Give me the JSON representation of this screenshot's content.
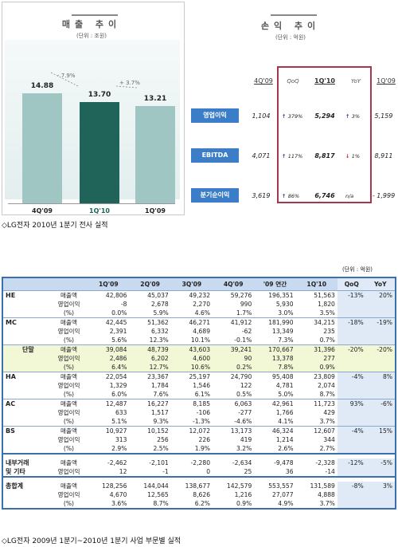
{
  "sales": {
    "title": "매출 추이",
    "unit": "(단위 : 조원)",
    "bars": [
      {
        "label": "4Q'09",
        "value": "14.88",
        "num": 14.88
      },
      {
        "label": "1Q'10",
        "value": "13.70",
        "num": 13.7
      },
      {
        "label": "1Q'09",
        "value": "13.21",
        "num": 13.21
      }
    ],
    "growth": [
      "- 7.9%",
      "+ 3.7%"
    ]
  },
  "pl": {
    "title": "손익 추이",
    "unit": "(단위 : 억원)",
    "headers": {
      "prev_q": "4Q'09",
      "qoq": "QoQ",
      "cur": "1Q'10",
      "yoy": "YoY",
      "prev_y": "1Q'09"
    },
    "rows": [
      {
        "label": "영업이익",
        "prev_q": "1,104",
        "qoq": "379%",
        "qoq_dir": "up",
        "cur": "5,294",
        "yoy": "3%",
        "yoy_dir": "up",
        "prev_y": "5,159"
      },
      {
        "label": "EBITDA",
        "prev_q": "4,071",
        "qoq": "117%",
        "qoq_dir": "up",
        "cur": "8,817",
        "yoy": "1%",
        "yoy_dir": "down",
        "prev_y": "8,911"
      },
      {
        "label": "분기순이익",
        "prev_q": "3,619",
        "qoq": "86%",
        "qoq_dir": "up",
        "cur": "6,746",
        "yoy": "n/a",
        "yoy_dir": "",
        "prev_y": "- 1,999"
      }
    ]
  },
  "captions": {
    "top": "◇LG전자 2010년 1분기 전사 실적",
    "bottom": "◇LG전자 2009년 1분기~2010년 1분기 사업 부문별 실적"
  },
  "table": {
    "unit": "(단위 : 억원)",
    "headers": [
      "1Q'09",
      "2Q'09",
      "3Q'09",
      "4Q'09",
      "'09 연간",
      "1Q'10",
      "QoQ",
      "YoY"
    ],
    "groups": [
      {
        "segment": "HE",
        "rows": [
          {
            "metric": "매출액",
            "v": [
              "42,806",
              "45,037",
              "49,232",
              "59,276",
              "196,351",
              "51,563",
              "-13%",
              "20%"
            ]
          },
          {
            "metric": "영업이익",
            "v": [
              "-8",
              "2,678",
              "2,270",
              "990",
              "5,930",
              "1,820",
              "",
              ""
            ]
          },
          {
            "metric": "(%)",
            "v": [
              "0.0%",
              "5.9%",
              "4.6%",
              "1.7%",
              "3.0%",
              "3.5%",
              "",
              ""
            ]
          }
        ]
      },
      {
        "segment": "MC",
        "rows": [
          {
            "metric": "매출액",
            "v": [
              "42,445",
              "51,362",
              "46,271",
              "41,912",
              "181,990",
              "34,215",
              "-18%",
              "-19%"
            ]
          },
          {
            "metric": "영업이익",
            "v": [
              "2,391",
              "6,332",
              "4,689",
              "-62",
              "13,349",
              "235",
              "",
              ""
            ]
          },
          {
            "metric": "(%)",
            "v": [
              "5.6%",
              "12.3%",
              "10.1%",
              "-0.1%",
              "7.3%",
              "0.7%",
              "",
              ""
            ]
          }
        ]
      },
      {
        "segment": "단말",
        "hl": true,
        "rows": [
          {
            "metric": "매출액",
            "v": [
              "39,084",
              "48,739",
              "43,603",
              "39,241",
              "170,667",
              "31,396",
              "-20%",
              "-20%"
            ]
          },
          {
            "metric": "영업이익",
            "v": [
              "2,486",
              "6,202",
              "4,600",
              "90",
              "13,378",
              "277",
              "",
              ""
            ]
          },
          {
            "metric": "(%)",
            "v": [
              "6.4%",
              "12.7%",
              "10.6%",
              "0.2%",
              "7.8%",
              "0.9%",
              "",
              ""
            ]
          }
        ]
      },
      {
        "segment": "HA",
        "rows": [
          {
            "metric": "매출액",
            "v": [
              "22,054",
              "23,367",
              "25,197",
              "24,790",
              "95,408",
              "23,809",
              "-4%",
              "8%"
            ]
          },
          {
            "metric": "영업이익",
            "v": [
              "1,329",
              "1,784",
              "1,546",
              "122",
              "4,781",
              "2,074",
              "",
              ""
            ]
          },
          {
            "metric": "(%)",
            "v": [
              "6.0%",
              "7.6%",
              "6.1%",
              "0.5%",
              "5.0%",
              "8.7%",
              "",
              ""
            ]
          }
        ]
      },
      {
        "segment": "AC",
        "rows": [
          {
            "metric": "매출액",
            "v": [
              "12,487",
              "16,227",
              "8,185",
              "6,063",
              "42,961",
              "11,723",
              "93%",
              "-6%"
            ]
          },
          {
            "metric": "영업이익",
            "v": [
              "633",
              "1,517",
              "-106",
              "-277",
              "1,766",
              "429",
              "",
              ""
            ]
          },
          {
            "metric": "(%)",
            "v": [
              "5.1%",
              "9.3%",
              "-1.3%",
              "-4.6%",
              "4.1%",
              "3.7%",
              "",
              ""
            ]
          }
        ]
      },
      {
        "segment": "BS",
        "rows": [
          {
            "metric": "매출액",
            "v": [
              "10,927",
              "10,152",
              "12,072",
              "13,173",
              "46,324",
              "12,607",
              "-4%",
              "15%"
            ]
          },
          {
            "metric": "영업이익",
            "v": [
              "313",
              "256",
              "226",
              "419",
              "1,214",
              "344",
              "",
              ""
            ]
          },
          {
            "metric": "(%)",
            "v": [
              "2.9%",
              "2.5%",
              "1.9%",
              "3.2%",
              "2.6%",
              "2.7%",
              "",
              ""
            ]
          }
        ]
      },
      {
        "segment": "내부거래",
        "segment2": "및 기타",
        "gap": true,
        "rows": [
          {
            "metric": "매출액",
            "v": [
              "-2,462",
              "-2,101",
              "-2,280",
              "-2,634",
              "-9,478",
              "-2,328",
              "-12%",
              "-5%"
            ]
          },
          {
            "metric": "영업이익",
            "v": [
              "12",
              "-1",
              "0",
              "25",
              "36",
              "-14",
              "",
              ""
            ]
          }
        ]
      },
      {
        "segment": "총합계",
        "gap": true,
        "rows": [
          {
            "metric": "매출액",
            "v": [
              "128,256",
              "144,044",
              "138,677",
              "142,579",
              "553,557",
              "131,589",
              "-8%",
              "3%"
            ]
          },
          {
            "metric": "영업이익",
            "v": [
              "4,670",
              "12,565",
              "8,626",
              "1,216",
              "27,077",
              "4,888",
              "",
              ""
            ]
          },
          {
            "metric": "(%)",
            "v": [
              "3.6%",
              "8.7%",
              "6.2%",
              "0.9%",
              "4.9%",
              "3.7%",
              "",
              ""
            ]
          }
        ]
      }
    ]
  }
}
